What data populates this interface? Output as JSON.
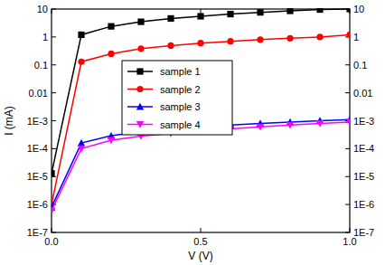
{
  "chart_data": {
    "type": "line",
    "log": "y",
    "x_label": "V (V)",
    "y_label": "I (mA)",
    "x": [
      0,
      0.1,
      0.2,
      0.3,
      0.4,
      0.5,
      0.6,
      0.7,
      0.8,
      0.9,
      1.0
    ],
    "series": [
      {
        "name": "sample 1",
        "color": "#000000",
        "marker": "square",
        "line_style": "solid",
        "values": [
          1.3e-05,
          1.2,
          2.4,
          3.5,
          4.6,
          5.5,
          6.6,
          7.6,
          8.6,
          9.6,
          10
        ]
      },
      {
        "name": "sample 2",
        "color": "#ff0000",
        "marker": "circle",
        "line_style": "solid",
        "values": [
          1e-06,
          0.13,
          0.25,
          0.38,
          0.49,
          0.6,
          0.7,
          0.8,
          0.9,
          1.0,
          1.2
        ]
      },
      {
        "name": "sample 3",
        "color": "#0000ff",
        "marker": "triangle-up",
        "line_style": "solid",
        "values": [
          8e-07,
          0.00016,
          0.00029,
          0.0004,
          0.0005,
          0.0006,
          0.0007,
          0.0008,
          0.0009,
          0.001,
          0.0011
        ]
      },
      {
        "name": "sample 4",
        "color": "#ff00ff",
        "marker": "triangle-down",
        "line_style": "solid",
        "values": [
          6e-07,
          0.0001,
          0.0002,
          0.00028,
          0.00035,
          0.00043,
          0.00051,
          0.0006,
          0.0007,
          0.0008,
          0.0009
        ]
      }
    ],
    "xlim": [
      0,
      1.0
    ],
    "xticks": [
      {
        "value": 0,
        "label": "0.0"
      },
      0.5,
      {
        "value": 1.0,
        "label": "1.0"
      }
    ],
    "ylim": [
      1e-07,
      10
    ],
    "yticks": [
      10,
      1,
      0.1,
      0.01,
      {
        "value": 0.001,
        "label": "1E-3"
      },
      {
        "value": 0.0001,
        "label": "1E-4"
      },
      {
        "value": 1e-05,
        "label": "1E-5"
      },
      {
        "value": 1e-06,
        "label": "1E-6"
      },
      {
        "value": 1e-07,
        "label": "1E-7"
      }
    ],
    "grid": false,
    "legend": "top"
  }
}
